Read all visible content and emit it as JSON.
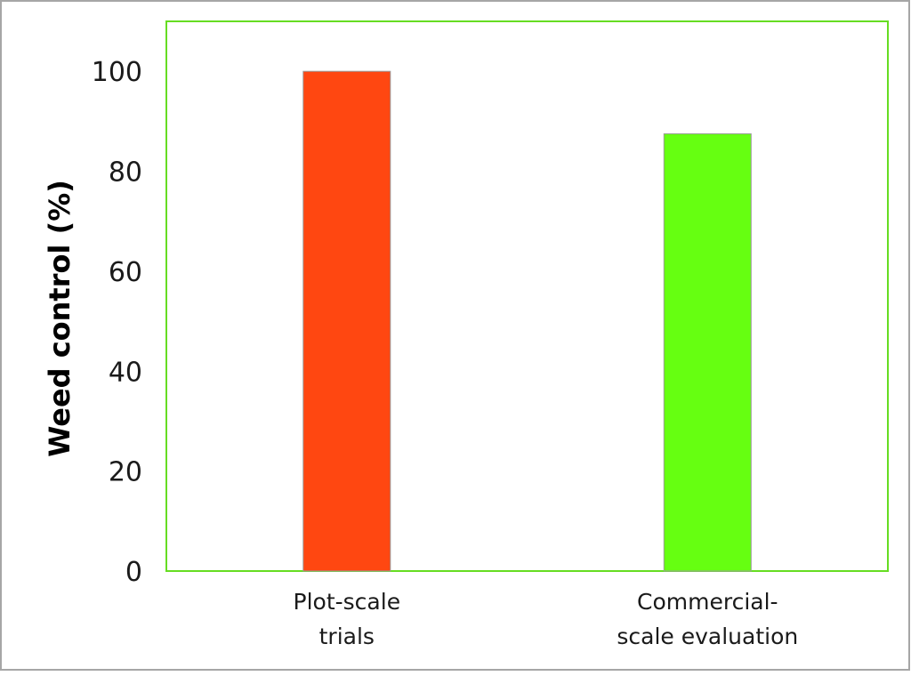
{
  "chart_data": {
    "type": "bar",
    "title": "",
    "xlabel": "",
    "ylabel": "Weed control (%)",
    "ylim": [
      0,
      110
    ],
    "yticks": [
      0,
      20,
      40,
      60,
      80,
      100
    ],
    "ytick_labels": [
      "0",
      "20",
      "40",
      "60",
      "80",
      "100"
    ],
    "grid": false,
    "legend": "none",
    "categories": [
      {
        "lines": [
          "Plot-scale",
          "trials"
        ]
      },
      {
        "lines": [
          "Commercial-",
          "scale evaluation"
        ]
      }
    ],
    "values": [
      100,
      87.5
    ],
    "colors": [
      "#ff4711",
      "#66ff11"
    ],
    "bar_edge_color": "#9a9a9a",
    "plot_border_color": "#66dd22",
    "outer_border_color": "#a6a6a6"
  }
}
